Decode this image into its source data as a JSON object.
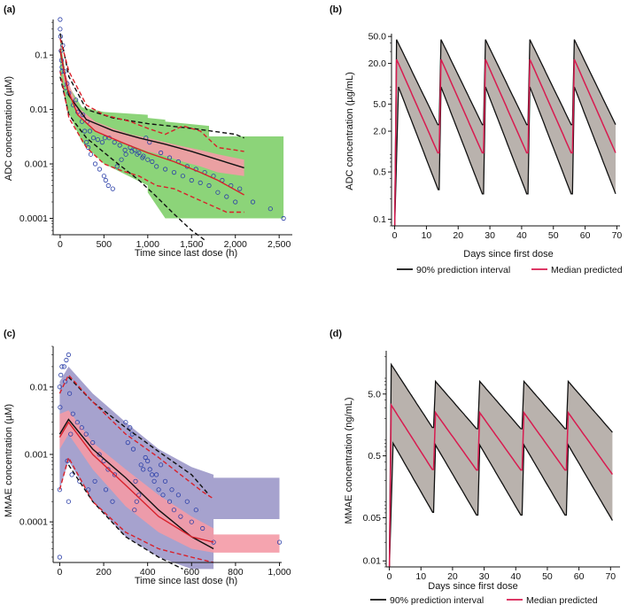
{
  "colors": {
    "blue_points": "#2b3fa8",
    "observed_median": "#d9202a",
    "predicted_ci_line": "#111111",
    "green_band": "#7fcf6a",
    "purple_band": "#9c98c9",
    "pink_band": "#f49aa6",
    "pi_fill": "#b9b2ad",
    "median_line": "#d81b50"
  },
  "chart_data": [
    {
      "id": "a",
      "panel_label": "(a)",
      "type": "scatter",
      "yscale": "log",
      "xlabel": "Time since last dose (h)",
      "ylabel": "ADC concentration (µM)",
      "xlim": [
        -80,
        2650
      ],
      "ylim": [
        5e-05,
        0.45
      ],
      "xticks": [
        0,
        500,
        1000,
        1500,
        2000,
        2500
      ],
      "xtick_labels": [
        "0",
        "500",
        "1,000",
        "1,500",
        "2,000",
        "2,500"
      ],
      "yticks": [
        0.0001,
        0.001,
        0.01,
        0.1
      ],
      "ytick_labels": [
        "0.0001",
        "0.001",
        "0.01",
        "0.1"
      ],
      "bands": [
        {
          "name": "green",
          "color_key": "green_band",
          "x": [
            0,
            80,
            250,
            500,
            1000,
            1000,
            1200,
            1200,
            1700,
            1700,
            2550
          ],
          "upper": [
            0.2,
            0.03,
            0.011,
            0.009,
            0.008,
            0.007,
            0.0065,
            0.006,
            0.005,
            0.0032,
            0.0032
          ],
          "lower": [
            0.05,
            0.01,
            0.0025,
            0.001,
            0.0004,
            0.0003,
            0.0001,
            0.0001,
            0.0001,
            0.0001,
            0.0001
          ]
        },
        {
          "name": "pink",
          "color_key": "pink_band",
          "x": [
            0,
            50,
            200,
            400,
            600,
            800,
            1000,
            1200,
            1400,
            1600,
            1800,
            2100
          ],
          "upper": [
            0.16,
            0.05,
            0.011,
            0.006,
            0.0045,
            0.0035,
            0.003,
            0.0025,
            0.0021,
            0.0018,
            0.0015,
            0.0012
          ],
          "lower": [
            0.1,
            0.03,
            0.008,
            0.004,
            0.0028,
            0.0022,
            0.0017,
            0.0014,
            0.0011,
            0.0009,
            0.0007,
            0.0006
          ]
        }
      ],
      "series": [
        {
          "name": "Predicted 90% CI upper",
          "color_key": "predicted_ci_line",
          "dash": true,
          "x": [
            0,
            100,
            300,
            600,
            1000,
            1500,
            2000,
            2100
          ],
          "y": [
            0.25,
            0.04,
            0.01,
            0.007,
            0.0055,
            0.0045,
            0.0035,
            0.003
          ]
        },
        {
          "name": "Predicted 90% CI lower",
          "color_key": "predicted_ci_line",
          "dash": true,
          "x": [
            0,
            100,
            300,
            600,
            900,
            1100,
            1300,
            1500,
            1650
          ],
          "y": [
            0.04,
            0.008,
            0.003,
            0.0012,
            0.0005,
            0.00025,
            0.00012,
            6e-05,
            4e-05
          ]
        },
        {
          "name": "Predicted median",
          "color_key": "predicted_ci_line",
          "dash": false,
          "x": [
            0,
            100,
            300,
            600,
            900,
            1200,
            1500,
            1800,
            2100
          ],
          "y": [
            0.12,
            0.018,
            0.0065,
            0.0041,
            0.003,
            0.0023,
            0.0017,
            0.0012,
            0.00085
          ]
        },
        {
          "name": "Observed median",
          "color_key": "observed_median",
          "dash": false,
          "x": [
            0,
            80,
            200,
            400,
            700,
            1000,
            1300,
            1600,
            1800,
            2100
          ],
          "y": [
            0.13,
            0.025,
            0.008,
            0.004,
            0.0025,
            0.0016,
            0.0011,
            0.0007,
            0.0005,
            0.00027
          ]
        },
        {
          "name": "Observed 90% upper",
          "color_key": "observed_median",
          "dash": true,
          "x": [
            0,
            100,
            300,
            500,
            800,
            1000,
            1200,
            1400,
            1600,
            1800,
            2100
          ],
          "y": [
            0.2,
            0.05,
            0.012,
            0.008,
            0.006,
            0.0045,
            0.0035,
            0.005,
            0.004,
            0.002,
            0.0017
          ]
        },
        {
          "name": "Observed 90% lower",
          "color_key": "observed_median",
          "dash": true,
          "x": [
            0,
            100,
            300,
            500,
            700,
            900,
            1100,
            1300,
            1500,
            1700,
            1900,
            2100
          ],
          "y": [
            0.05,
            0.007,
            0.002,
            0.001,
            0.00075,
            0.0006,
            0.0004,
            0.00035,
            0.00025,
            0.00018,
            0.00013,
            0.00013
          ]
        }
      ],
      "scatter": {
        "color_key": "blue_points",
        "x": [
          0,
          0,
          5,
          10,
          15,
          20,
          30,
          50,
          80,
          100,
          150,
          200,
          250,
          280,
          300,
          320,
          350,
          400,
          450,
          500,
          520,
          550,
          600,
          650,
          700,
          750,
          800,
          850,
          900,
          950,
          1000,
          1050,
          1100,
          1200,
          1300,
          1400,
          1500,
          1600,
          1700,
          1800,
          1900,
          2000,
          2200,
          2400,
          2550,
          20,
          60,
          180,
          260,
          310,
          340,
          380,
          430,
          480,
          510,
          560,
          620,
          680,
          740,
          820,
          880,
          940,
          980,
          1020,
          1150,
          1250,
          1350,
          1450,
          1550,
          1650,
          1750,
          1850,
          1950,
          2050
        ],
        "y": [
          0.45,
          0.3,
          0.22,
          0.12,
          0.08,
          0.06,
          0.15,
          0.05,
          0.03,
          0.02,
          0.012,
          0.009,
          0.006,
          0.004,
          0.0025,
          0.002,
          0.0015,
          0.001,
          0.0008,
          0.0006,
          0.0005,
          0.0004,
          0.00035,
          0.0009,
          0.0012,
          0.0015,
          0.002,
          0.0018,
          0.0016,
          0.0014,
          0.0012,
          0.0011,
          0.0009,
          0.0008,
          0.0007,
          0.0006,
          0.0005,
          0.00045,
          0.0004,
          0.0003,
          0.00025,
          0.0002,
          0.0002,
          0.00015,
          0.0001,
          0.05,
          0.025,
          0.015,
          0.008,
          0.006,
          0.004,
          0.003,
          0.0028,
          0.0025,
          0.003,
          0.003,
          0.0025,
          0.0022,
          0.0018,
          0.0017,
          0.0015,
          0.0013,
          0.003,
          0.0025,
          0.0016,
          0.0013,
          0.0011,
          0.0009,
          0.0008,
          0.0007,
          0.0006,
          0.0005,
          0.0004,
          0.00035
        ]
      }
    },
    {
      "id": "b",
      "panel_label": "(b)",
      "type": "area",
      "yscale": "log",
      "xlabel": "Days since first dose",
      "ylabel": "ADC concentration (µg/mL)",
      "xlim": [
        -1,
        71
      ],
      "ylim": [
        0.08,
        55
      ],
      "xticks": [
        0,
        10,
        20,
        30,
        40,
        50,
        60,
        70
      ],
      "xtick_labels": [
        "0",
        "10",
        "20",
        "30",
        "40",
        "50",
        "60",
        "70"
      ],
      "yticks": [
        0.1,
        0.5,
        2.0,
        5.0,
        20.0,
        50.0
      ],
      "ytick_labels": [
        "0.1",
        "0.5",
        "2.0",
        "5.0",
        "20.0",
        "50.0"
      ],
      "dose_days": [
        0,
        14,
        28,
        42,
        56
      ],
      "pi_upper": {
        "peak": 45,
        "trough": 2
      },
      "pi_lower": {
        "peak": 9,
        "trough": 0.18
      },
      "median": {
        "peak": 23,
        "trough": 0.75
      },
      "period_days": 14,
      "end_day": 70,
      "legend": [
        {
          "label": "90% prediction interval",
          "color_key": "predicted_ci_line"
        },
        {
          "label": "Median predicted",
          "color_key": "median_line"
        }
      ]
    },
    {
      "id": "c",
      "panel_label": "(c)",
      "type": "scatter",
      "yscale": "log",
      "xlabel": "Time since last dose (h)",
      "ylabel": "MMAE concentration (µM)",
      "xlim": [
        -30,
        1010
      ],
      "ylim": [
        2.5e-05,
        0.04
      ],
      "xticks": [
        0,
        200,
        400,
        600,
        800,
        1000
      ],
      "xtick_labels": [
        "0",
        "200",
        "400",
        "600",
        "800",
        "1,000"
      ],
      "yticks": [
        0.0001,
        0.001,
        0.01
      ],
      "ytick_labels": [
        "0.0001",
        "0.001",
        "0.01"
      ],
      "bands": [
        {
          "name": "purple",
          "color_key": "purple_band",
          "x": [
            0,
            40,
            150,
            300,
            450,
            600,
            700,
            700,
            1000
          ],
          "upper": [
            0.012,
            0.02,
            0.008,
            0.003,
            0.0012,
            0.00065,
            0.0005,
            0.00045,
            0.00045
          ],
          "lower": [
            0.0003,
            0.0008,
            0.0002,
            6e-05,
            3e-05,
            2e-05,
            2e-05,
            0.00011,
            0.00011
          ]
        },
        {
          "name": "pink",
          "color_key": "pink_band",
          "x": [
            0,
            40,
            150,
            300,
            450,
            600,
            700,
            700,
            1000
          ],
          "upper": [
            0.004,
            0.0045,
            0.0015,
            0.0006,
            0.00025,
            0.00012,
            8e-05,
            6.5e-05,
            6.5e-05
          ],
          "lower": [
            0.0012,
            0.002,
            0.0006,
            0.00017,
            7e-05,
            4e-05,
            3.5e-05,
            3.5e-05,
            3.5e-05
          ]
        }
      ],
      "series": [
        {
          "name": "Predicted 90% upper",
          "color_key": "predicted_ci_line",
          "dash": true,
          "x": [
            40,
            150,
            300,
            450,
            600,
            680
          ],
          "y": [
            0.014,
            0.006,
            0.0025,
            0.0011,
            0.0005,
            0.00025
          ]
        },
        {
          "name": "Predicted 90% lower",
          "color_key": "predicted_ci_line",
          "dash": true,
          "x": [
            40,
            150,
            300,
            450,
            560
          ],
          "y": [
            0.0007,
            0.0002,
            6e-05,
            3e-05,
            2e-05
          ]
        },
        {
          "name": "Predicted median",
          "color_key": "predicted_ci_line",
          "dash": false,
          "x": [
            0,
            40,
            150,
            300,
            450,
            600,
            700
          ],
          "y": [
            0.002,
            0.0033,
            0.0012,
            0.00045,
            0.00015,
            6e-05,
            4e-05
          ]
        },
        {
          "name": "Observed median",
          "color_key": "observed_median",
          "dash": false,
          "x": [
            0,
            40,
            150,
            300,
            450,
            600,
            700
          ],
          "y": [
            0.0018,
            0.003,
            0.001,
            0.00035,
            0.00012,
            6e-05,
            5e-05
          ]
        },
        {
          "name": "Observed 90% upper",
          "color_key": "observed_median",
          "dash": true,
          "x": [
            0,
            40,
            150,
            300,
            450,
            550,
            650,
            700
          ],
          "y": [
            0.008,
            0.015,
            0.006,
            0.002,
            0.0009,
            0.0005,
            0.00028,
            0.00022
          ]
        },
        {
          "name": "Observed 90% lower",
          "color_key": "observed_median",
          "dash": true,
          "x": [
            0,
            40,
            150,
            300,
            450,
            600,
            700
          ],
          "y": [
            0.0003,
            0.0009,
            0.0002,
            7e-05,
            4e-05,
            3e-05,
            2.5e-05
          ]
        }
      ],
      "scatter": {
        "color_key": "blue_points",
        "x": [
          0,
          0,
          0,
          2,
          5,
          10,
          20,
          30,
          40,
          40,
          45,
          50,
          60,
          80,
          100,
          120,
          150,
          180,
          200,
          220,
          250,
          300,
          320,
          330,
          340,
          350,
          360,
          380,
          400,
          420,
          430,
          450,
          470,
          500,
          520,
          550,
          600,
          650,
          700,
          1000,
          25,
          35,
          55,
          90,
          130,
          160,
          210,
          240,
          310,
          335,
          345,
          370,
          390,
          410,
          440,
          460,
          480,
          510,
          540,
          580,
          620
        ],
        "y": [
          0.01,
          0.0003,
          3e-05,
          0.005,
          0.015,
          0.02,
          0.02,
          0.025,
          0.03,
          0.0002,
          0.008,
          0.002,
          0.004,
          0.003,
          0.0025,
          0.002,
          0.0015,
          0.001,
          0.0008,
          0.0006,
          0.0005,
          0.003,
          0.0025,
          0.002,
          0.00015,
          0.0002,
          0.00025,
          0.0006,
          0.0008,
          0.0005,
          0.0004,
          0.0003,
          0.00025,
          0.0002,
          0.00015,
          0.00012,
          0.0001,
          8e-05,
          5e-05,
          5e-05,
          0.012,
          0.0008,
          0.0005,
          0.0004,
          0.0003,
          0.0004,
          0.0003,
          0.0002,
          0.0015,
          0.0012,
          0.0004,
          0.0007,
          0.0009,
          0.0006,
          0.0005,
          0.0007,
          0.0004,
          0.0003,
          0.00025,
          0.0002,
          0.00015
        ]
      }
    },
    {
      "id": "d",
      "panel_label": "(d)",
      "type": "area",
      "yscale": "log",
      "xlabel": "Days since first dose",
      "ylabel": "MMAE concentration (ng/mL)",
      "xlim": [
        -1,
        73
      ],
      "ylim": [
        0.008,
        25
      ],
      "xticks": [
        0,
        10,
        20,
        30,
        40,
        50,
        60,
        70
      ],
      "xtick_labels": [
        "0",
        "10",
        "20",
        "30",
        "40",
        "50",
        "60",
        "70"
      ],
      "yticks": [
        0.01,
        0.05,
        0.5,
        5.0
      ],
      "ytick_labels": [
        "0.01",
        "0.05",
        "0.5",
        "5.0"
      ],
      "dose_days": [
        0,
        14,
        28,
        42,
        56
      ],
      "pi_upper": {
        "first_peak": 15,
        "peak": 8,
        "trough": 1.2
      },
      "pi_lower": {
        "first_peak": 0.8,
        "peak": 0.75,
        "trough": 0.045
      },
      "median": {
        "first_peak": 3.3,
        "peak": 2.5,
        "trough": 0.25
      },
      "period_days": 14,
      "end_day": 71,
      "legend": [
        {
          "label": "90% prediction interval",
          "color_key": "predicted_ci_line"
        },
        {
          "label": "Median predicted",
          "color_key": "median_line"
        }
      ]
    }
  ]
}
